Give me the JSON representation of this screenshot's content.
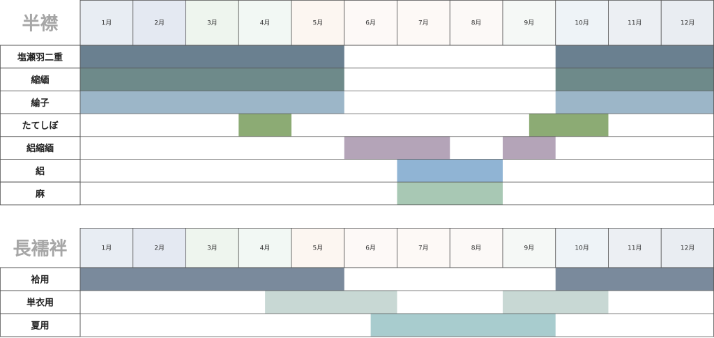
{
  "chart_data": [
    {
      "type": "gantt",
      "title": "半襟",
      "months": [
        "1月",
        "2月",
        "3月",
        "4月",
        "5月",
        "6月",
        "7月",
        "8月",
        "9月",
        "10月",
        "11月",
        "12月"
      ],
      "month_colors": [
        "#e8edf3",
        "#e4e9f2",
        "#eef5ee",
        "#f2f8f4",
        "#fcf6f1",
        "#fdf9f7",
        "#fdf9f6",
        "#fcf9f7",
        "#f5f8f6",
        "#eef3f7",
        "#eceff3",
        "#e9edf2"
      ],
      "rows": [
        {
          "label": "塩瀬羽二重",
          "color": "#6a8090",
          "segments": [
            [
              1,
              5
            ],
            [
              10,
              12
            ]
          ]
        },
        {
          "label": "縮緬",
          "color": "#6e8a8a",
          "segments": [
            [
              1,
              5
            ],
            [
              10,
              12
            ]
          ]
        },
        {
          "label": "綸子",
          "color": "#9cb6c8",
          "segments": [
            [
              1,
              5
            ],
            [
              10,
              12
            ]
          ]
        },
        {
          "label": "たてしぼ",
          "color": "#8cab74",
          "segments": [
            [
              4,
              4
            ],
            [
              9.5,
              10
            ]
          ]
        },
        {
          "label": "絽縮緬",
          "color": "#b4a4b8",
          "segments": [
            [
              6,
              7
            ],
            [
              9,
              9
            ]
          ]
        },
        {
          "label": "絽",
          "color": "#90b4d4",
          "segments": [
            [
              7,
              8
            ]
          ]
        },
        {
          "label": "麻",
          "color": "#a8c8b4",
          "segments": [
            [
              7,
              8
            ]
          ]
        }
      ]
    },
    {
      "type": "gantt",
      "title": "長襦袢",
      "months": [
        "1月",
        "2月",
        "3月",
        "4月",
        "5月",
        "6月",
        "7月",
        "8月",
        "9月",
        "10月",
        "11月",
        "12月"
      ],
      "month_colors": [
        "#e8edf3",
        "#e4e9f2",
        "#eef5ee",
        "#f2f8f4",
        "#fcf6f1",
        "#fdf9f7",
        "#fdf9f6",
        "#fcf9f7",
        "#f5f8f6",
        "#eef3f7",
        "#eceff3",
        "#e9edf2"
      ],
      "rows": [
        {
          "label": "袷用",
          "color": "#7a8a9c",
          "segments": [
            [
              1,
              5
            ],
            [
              10,
              12
            ]
          ]
        },
        {
          "label": "単衣用",
          "color": "#c8d8d4",
          "segments": [
            [
              4.5,
              6
            ],
            [
              9,
              10
            ]
          ]
        },
        {
          "label": "夏用",
          "color": "#a8ccce",
          "segments": [
            [
              6.5,
              9
            ]
          ]
        }
      ]
    }
  ]
}
